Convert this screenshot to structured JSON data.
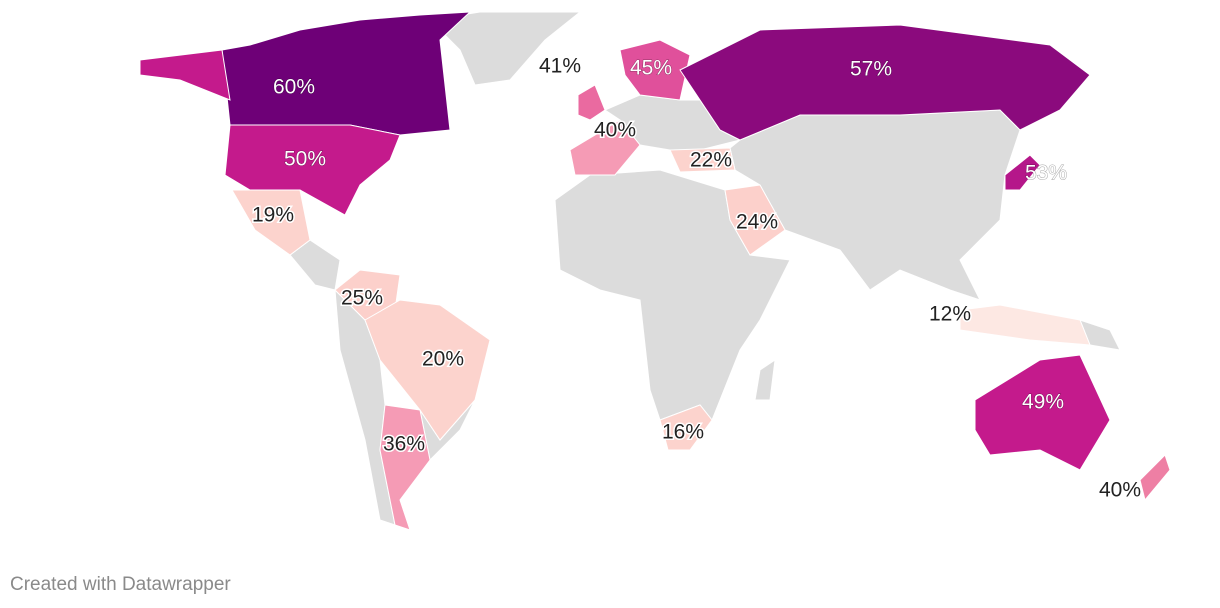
{
  "chart_data": {
    "type": "map",
    "values": [
      60,
      50,
      19,
      25,
      20,
      36,
      41,
      45,
      40,
      22,
      24,
      57,
      53,
      16,
      12,
      49,
      40
    ],
    "value_labels": [
      "60%",
      "50%",
      "19%",
      "25%",
      "20%",
      "36%",
      "41%",
      "45%",
      "40%",
      "22%",
      "24%",
      "57%",
      "53%",
      "16%",
      "12%",
      "49%",
      "40%"
    ],
    "colors": [
      "#6e0077",
      "#c41a8c",
      "#fcd3cd",
      "#fcd0cb",
      "#fcd3cd",
      "#f59bb5",
      "#ea6aa0",
      "#e0509b",
      "#f59bb5",
      "#fcd3cd",
      "#fcd0cb",
      "#8b0a7d",
      "#b5178a",
      "#fcd3cd",
      "#fde8e3",
      "#c41a8c",
      "#ee7fa4"
    ],
    "credit": "Created with Datawrapper"
  }
}
